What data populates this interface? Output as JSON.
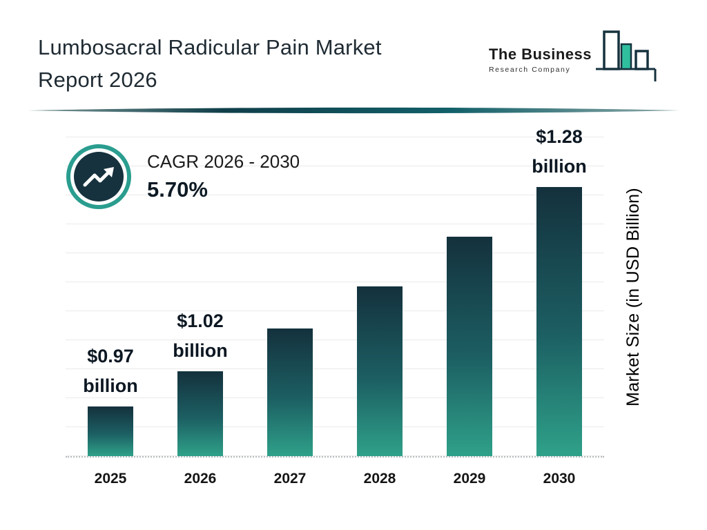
{
  "header": {
    "title_line1": "Lumbosacral Radicular Pain Market",
    "title_line2": "Report 2026"
  },
  "logo": {
    "line1": "The Business",
    "line2": "Research Company"
  },
  "cagr": {
    "label": "CAGR 2026 - 2030",
    "value": "5.70%"
  },
  "chart_data": {
    "type": "bar",
    "title": "Lumbosacral Radicular Pain Market Report 2026",
    "categories": [
      "2025",
      "2026",
      "2027",
      "2028",
      "2029",
      "2030"
    ],
    "values": [
      0.97,
      1.02,
      1.08,
      1.14,
      1.21,
      1.28
    ],
    "labels": [
      {
        "amount": "$0.97",
        "unit": "billion"
      },
      {
        "amount": "$1.02",
        "unit": "billion"
      },
      null,
      null,
      null,
      {
        "amount": "$1.28",
        "unit": "billion"
      }
    ],
    "xlabel": "",
    "ylabel": "Market Size (in USD Billion)",
    "ylim": [
      0.9,
      1.3
    ],
    "grid": "horizontal",
    "legend_position": "none",
    "annotations": [
      "CAGR 2026 - 2030: 5.70%"
    ],
    "colors": {
      "bar_top": "#14313d",
      "bar_mid": "#1c5f63",
      "bar_bottom": "#2fa189",
      "accent_teal": "#2a9d8f",
      "dark_navy": "#16323e"
    }
  }
}
